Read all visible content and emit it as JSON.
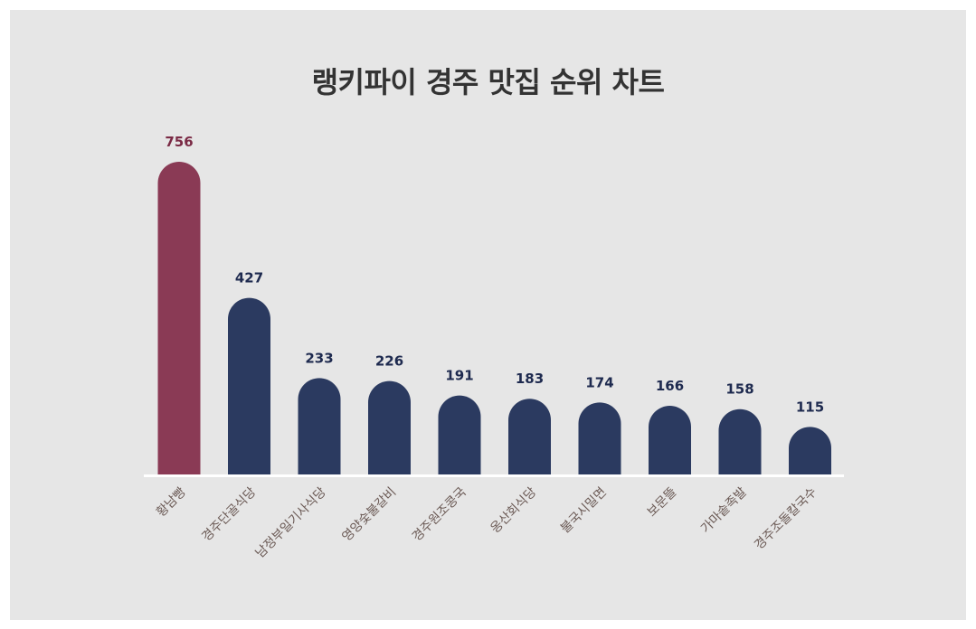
{
  "chart_data": {
    "type": "bar",
    "title": "랭키파이 경주 맛집 순위 차트",
    "categories": [
      "황남빵",
      "경주단골식당",
      "남정부일기사식당",
      "영양숯불갈비",
      "경주원조콩국",
      "옹산회식당",
      "불국시밀면",
      "보문뜰",
      "가마솥족발",
      "경주조돌칼국수"
    ],
    "series": [
      {
        "values": [
          756,
          427,
          233,
          226,
          191,
          183,
          174,
          166,
          158,
          115
        ]
      }
    ],
    "highlight_index": 0,
    "ylim": [
      0,
      756
    ],
    "grid": false,
    "legend": "none"
  },
  "colors": {
    "background": "#e6e6e6",
    "highlight_bar": "#8a3a55",
    "bar": "#2b3a60",
    "highlight_value_label": "#7a2a45",
    "value_label": "#1e2a4f",
    "category_label": "#6b5a55",
    "baseline": "#ffffff"
  }
}
